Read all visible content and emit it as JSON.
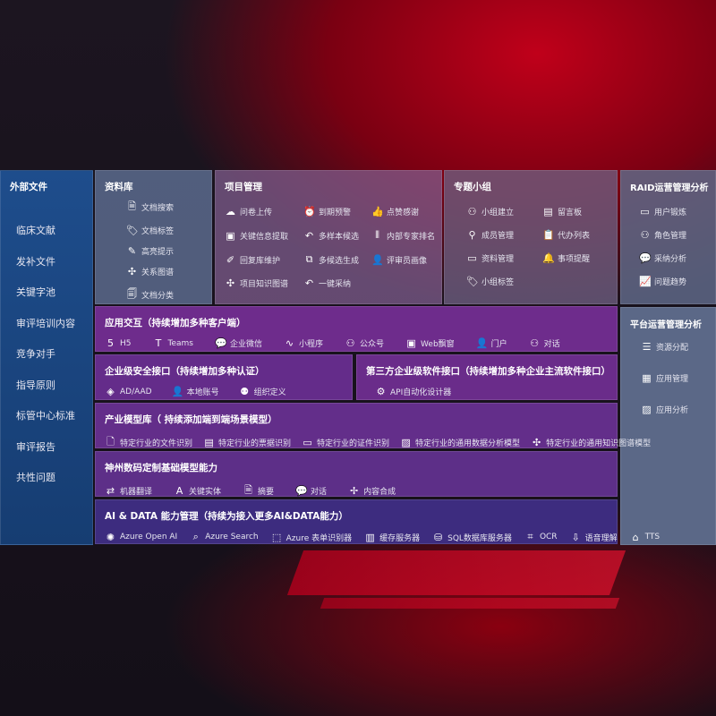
{
  "left": {
    "title": "外部文件",
    "items": [
      "临床文献",
      "发补文件",
      "关键字池",
      "审评培训内容",
      "竞争对手",
      "指导原则",
      "标管中心标准",
      "审评报告",
      "共性问题"
    ]
  },
  "library": {
    "title": "资料库",
    "items": [
      {
        "icon": "file-search",
        "label": "文档搜索"
      },
      {
        "icon": "tag",
        "label": "文档标签"
      },
      {
        "icon": "pen",
        "label": "高亮提示"
      },
      {
        "icon": "graph",
        "label": "关系图谱"
      },
      {
        "icon": "document",
        "label": "文档分类"
      }
    ]
  },
  "project": {
    "title": "项目管理",
    "items": [
      {
        "icon": "cloud-upload",
        "label": "问卷上传"
      },
      {
        "icon": "alarm",
        "label": "到期预警"
      },
      {
        "icon": "thumbs-up",
        "label": "点赞感谢"
      },
      {
        "icon": "window",
        "label": "关键信息提取"
      },
      {
        "icon": "reply",
        "label": "多样本候选"
      },
      {
        "icon": "ranking",
        "label": "内部专家排名"
      },
      {
        "icon": "edit",
        "label": "回复库维护"
      },
      {
        "icon": "puzzle",
        "label": "多候选生成"
      },
      {
        "icon": "user",
        "label": "评审员画像"
      },
      {
        "icon": "graph",
        "label": "项目知识图谱"
      },
      {
        "icon": "reply",
        "label": "一键采纳"
      }
    ]
  },
  "group": {
    "title": "专题小组",
    "items": [
      {
        "icon": "users",
        "label": "小组建立"
      },
      {
        "icon": "bbs",
        "label": "留言板"
      },
      {
        "icon": "user-add",
        "label": "成员管理"
      },
      {
        "icon": "clipboard",
        "label": "代办列表"
      },
      {
        "icon": "folder",
        "label": "资料管理"
      },
      {
        "icon": "bell",
        "label": "事项提醒"
      },
      {
        "icon": "tag",
        "label": "小组标签"
      }
    ]
  },
  "raid": {
    "title": "RAID运营管理分析",
    "items": [
      {
        "icon": "id-card",
        "label": "用户锻炼"
      },
      {
        "icon": "users",
        "label": "角色管理"
      },
      {
        "icon": "qa",
        "label": "采纳分析"
      },
      {
        "icon": "trend",
        "label": "问题趋势"
      }
    ]
  },
  "platform": {
    "title": "平台运营管理分析",
    "items": [
      {
        "icon": "list",
        "label": "资源分配"
      },
      {
        "icon": "apps",
        "label": "应用管理"
      },
      {
        "icon": "chart",
        "label": "应用分析"
      }
    ]
  },
  "app": {
    "title": "应用交互（持续增加多种客户端）",
    "items": [
      {
        "icon": "html5",
        "label": "H5"
      },
      {
        "icon": "teams",
        "label": "Teams"
      },
      {
        "icon": "wechat",
        "label": "企业微信"
      },
      {
        "icon": "miniprogram",
        "label": "小程序"
      },
      {
        "icon": "users",
        "label": "公众号"
      },
      {
        "icon": "window",
        "label": "Web飘窗"
      },
      {
        "icon": "portal",
        "label": "门户"
      },
      {
        "icon": "chat-users",
        "label": "对话"
      }
    ]
  },
  "security": {
    "title": "企业级安全接口（持续增加多种认证）",
    "items": [
      {
        "icon": "azure-ad",
        "label": "AD/AAD"
      },
      {
        "icon": "user-key",
        "label": "本地账号"
      },
      {
        "icon": "org",
        "label": "组织定义"
      }
    ]
  },
  "third": {
    "title": "第三方企业级软件接口（持续增加多种企业主流软件接口）",
    "items": [
      {
        "icon": "gear",
        "label": "API自动化设计器"
      }
    ]
  },
  "industry": {
    "title": "产业模型库（ 持续添加端到端场景模型）",
    "items": [
      {
        "icon": "file",
        "label": "特定行业的文件识别"
      },
      {
        "icon": "receipt",
        "label": "特定行业的票据识别"
      },
      {
        "icon": "id-card",
        "label": "特定行业的证件识别"
      },
      {
        "icon": "analytics",
        "label": "特定行业的通用数据分析模型"
      },
      {
        "icon": "graph",
        "label": "特定行业的通用知识图谱模型"
      }
    ]
  },
  "base": {
    "title": "神州数码定制基础模型能力",
    "items": [
      {
        "icon": "translate",
        "label": "机器翻译"
      },
      {
        "icon": "entity",
        "label": "关键实体"
      },
      {
        "icon": "summary",
        "label": "摘要"
      },
      {
        "icon": "chat",
        "label": "对话"
      },
      {
        "icon": "compose",
        "label": "内容合成"
      }
    ]
  },
  "ai": {
    "title": "AI & DATA 能力管理（持续为接入更多AI&DATA能力）",
    "items": [
      {
        "icon": "openai",
        "label": "Azure Open AI"
      },
      {
        "icon": "search",
        "label": "Azure Search"
      },
      {
        "icon": "form",
        "label": "Azure 表单识别器"
      },
      {
        "icon": "cache",
        "label": "缓存服务器"
      },
      {
        "icon": "sql",
        "label": "SQL数据库服务器"
      },
      {
        "icon": "ocr",
        "label": "OCR"
      },
      {
        "icon": "speech",
        "label": "语音理解"
      },
      {
        "icon": "tts",
        "label": "TTS"
      }
    ]
  }
}
